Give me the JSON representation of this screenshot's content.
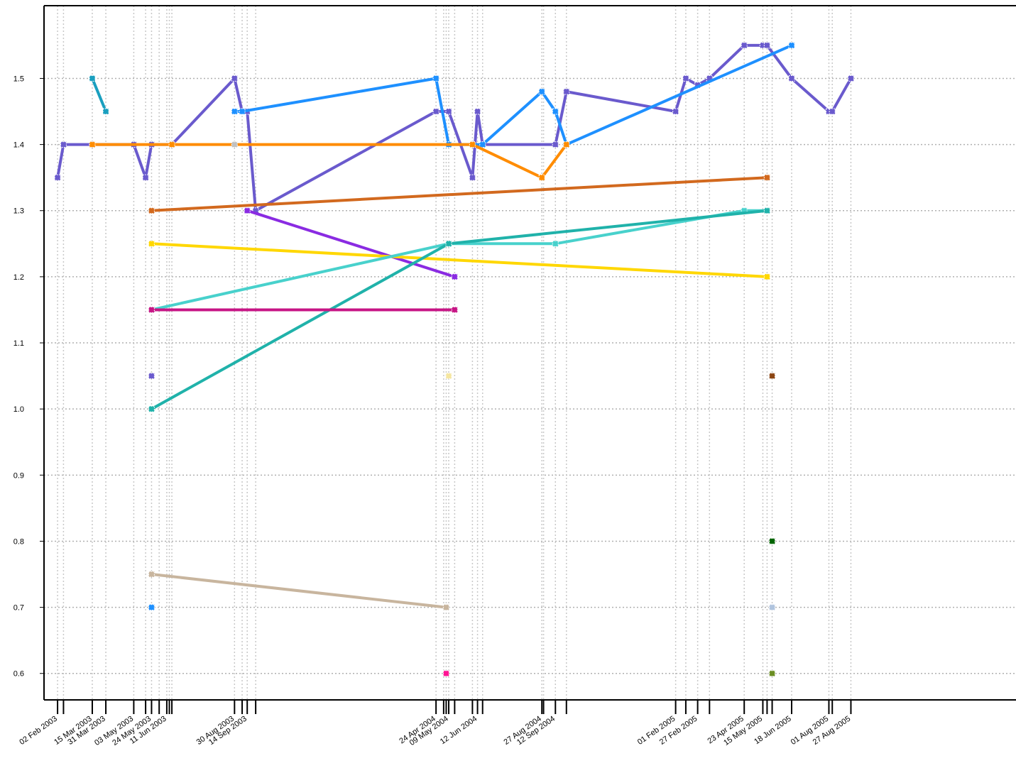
{
  "chart_data": {
    "type": "line",
    "title": "",
    "xlabel": "",
    "ylabel": "",
    "x_type": "date",
    "ylim": [
      0.56,
      1.61
    ],
    "xlim": [
      "2003-01-17",
      "2006-03-10"
    ],
    "grid": true,
    "legend": "none",
    "y_ticks": [
      0.6,
      0.7,
      0.8,
      0.9,
      1.0,
      1.1,
      1.2,
      1.3,
      1.4,
      1.5
    ],
    "y_tick_labels": [
      "0.6",
      "0.7",
      "0.8",
      "0.9",
      "1.0",
      "1.1",
      "1.2",
      "1.3",
      "1.4",
      "1.5"
    ],
    "x_ticks": [
      "2003-02-02",
      "2003-02-09",
      "2003-03-15",
      "2003-03-31",
      "2003-05-03",
      "2003-05-17",
      "2003-05-24",
      "2003-06-02",
      "2003-06-11",
      "2003-06-14",
      "2003-06-17",
      "2003-08-30",
      "2003-09-08",
      "2003-09-14",
      "2003-09-24",
      "2004-04-24",
      "2004-05-03",
      "2004-05-06",
      "2004-05-09",
      "2004-05-16",
      "2004-06-06",
      "2004-06-12",
      "2004-06-18",
      "2004-08-27",
      "2004-08-29",
      "2004-09-12",
      "2004-09-25",
      "2005-02-01",
      "2005-02-13",
      "2005-02-27",
      "2005-03-13",
      "2005-04-23",
      "2005-05-15",
      "2005-05-20",
      "2005-05-26",
      "2005-06-18",
      "2005-08-01",
      "2005-08-05",
      "2005-08-27"
    ],
    "x_labeled": [
      {
        "date": "2003-02-02",
        "label": "02 Feb 2003"
      },
      {
        "date": "2003-03-15",
        "label": "15 Mar 2003"
      },
      {
        "date": "2003-03-31",
        "label": "31 Mar 2003"
      },
      {
        "date": "2003-05-03",
        "label": "03 May 2003"
      },
      {
        "date": "2003-05-24",
        "label": "24 May 2003"
      },
      {
        "date": "2003-06-11",
        "label": "11 Jun 2003"
      },
      {
        "date": "2003-08-30",
        "label": "30 Aug 2003"
      },
      {
        "date": "2003-09-14",
        "label": "14 Sep 2003"
      },
      {
        "date": "2004-04-24",
        "label": "24 Apr 2004"
      },
      {
        "date": "2004-05-09",
        "label": "09 May 2004"
      },
      {
        "date": "2004-06-12",
        "label": "12 Jun 2004"
      },
      {
        "date": "2004-08-27",
        "label": "27 Aug 2004"
      },
      {
        "date": "2004-09-12",
        "label": "12 Sep 2004"
      },
      {
        "date": "2005-02-01",
        "label": "01 Feb 2005"
      },
      {
        "date": "2005-02-27",
        "label": "27 Feb 2005"
      },
      {
        "date": "2005-04-23",
        "label": "23 Apr 2005"
      },
      {
        "date": "2005-05-15",
        "label": "15 May 2005"
      },
      {
        "date": "2005-06-18",
        "label": "18 Jun 2005"
      },
      {
        "date": "2005-08-01",
        "label": "01 Aug 2005"
      },
      {
        "date": "2005-08-27",
        "label": "27 Aug 2005"
      }
    ],
    "series": [
      {
        "color": "#6A5ACD",
        "points": [
          [
            "2003-02-02",
            1.35
          ],
          [
            "2003-02-09",
            1.4
          ],
          [
            "2003-03-15",
            1.4
          ],
          [
            "2003-05-03",
            1.4
          ],
          [
            "2003-05-17",
            1.35
          ],
          [
            "2003-05-24",
            1.4
          ],
          [
            "2003-06-17",
            1.4
          ],
          [
            "2003-08-30",
            1.5
          ],
          [
            "2003-09-08",
            1.45
          ],
          [
            "2003-09-14",
            1.45
          ],
          [
            "2003-09-24",
            1.3
          ],
          [
            "2004-04-24",
            1.45
          ],
          [
            "2004-05-09",
            1.45
          ],
          [
            "2004-06-06",
            1.35
          ],
          [
            "2004-06-12",
            1.45
          ],
          [
            "2004-06-18",
            1.4
          ],
          [
            "2004-09-12",
            1.4
          ],
          [
            "2004-09-25",
            1.48
          ],
          [
            "2005-02-01",
            1.45
          ],
          [
            "2005-02-13",
            1.5
          ],
          [
            "2005-02-27",
            1.49
          ],
          [
            "2005-03-13",
            1.5
          ],
          [
            "2005-04-23",
            1.55
          ],
          [
            "2005-05-15",
            1.55
          ],
          [
            "2005-05-20",
            1.55
          ],
          [
            "2005-06-18",
            1.5
          ],
          [
            "2005-08-01",
            1.45
          ],
          [
            "2005-08-05",
            1.45
          ],
          [
            "2005-08-27",
            1.5
          ]
        ]
      },
      {
        "color": "#1E90FF",
        "points": [
          [
            "2003-08-30",
            1.45
          ],
          [
            "2003-09-08",
            1.45
          ],
          [
            "2004-04-24",
            1.5
          ],
          [
            "2004-05-09",
            1.4
          ],
          [
            "2004-06-18",
            1.4
          ],
          [
            "2004-08-27",
            1.48
          ],
          [
            "2004-09-12",
            1.45
          ],
          [
            "2004-09-25",
            1.4
          ],
          [
            "2005-06-18",
            1.55
          ]
        ]
      },
      {
        "color": "#1A9FBF",
        "points": [
          [
            "2003-03-15",
            1.5
          ],
          [
            "2003-03-31",
            1.45
          ]
        ]
      },
      {
        "color": "#FF8C00",
        "points": [
          [
            "2003-03-15",
            1.4
          ],
          [
            "2003-06-17",
            1.4
          ],
          [
            "2004-06-06",
            1.4
          ],
          [
            "2004-08-27",
            1.35
          ],
          [
            "2004-09-25",
            1.4
          ]
        ]
      },
      {
        "color": "#D2691E",
        "points": [
          [
            "2003-05-24",
            1.3
          ],
          [
            "2005-05-20",
            1.35
          ]
        ]
      },
      {
        "color": "#8A2BE2",
        "points": [
          [
            "2003-09-14",
            1.3
          ],
          [
            "2004-05-16",
            1.2
          ]
        ]
      },
      {
        "color": "#FFD700",
        "points": [
          [
            "2003-05-24",
            1.25
          ],
          [
            "2005-05-20",
            1.2
          ]
        ]
      },
      {
        "color": "#48D1CC",
        "points": [
          [
            "2003-05-24",
            1.15
          ],
          [
            "2004-05-09",
            1.25
          ],
          [
            "2004-09-12",
            1.25
          ],
          [
            "2005-04-23",
            1.3
          ],
          [
            "2005-05-20",
            1.3
          ]
        ]
      },
      {
        "color": "#20B2AA",
        "points": [
          [
            "2003-05-24",
            1.0
          ],
          [
            "2004-05-09",
            1.25
          ],
          [
            "2005-05-20",
            1.3
          ]
        ]
      },
      {
        "color": "#C71585",
        "points": [
          [
            "2003-05-24",
            1.15
          ],
          [
            "2004-05-16",
            1.15
          ]
        ]
      },
      {
        "color": "#C8B59E",
        "points": [
          [
            "2003-05-24",
            0.75
          ],
          [
            "2004-05-06",
            0.7
          ]
        ]
      }
    ],
    "single_points": [
      {
        "date": "2003-05-24",
        "y": 1.05,
        "color": "#6A5ACD"
      },
      {
        "date": "2003-05-24",
        "y": 0.7,
        "color": "#1E90FF"
      },
      {
        "date": "2003-08-30",
        "y": 1.4,
        "color": "#C0C0C0"
      },
      {
        "date": "2004-05-09",
        "y": 1.05,
        "color": "#F5E6A0"
      },
      {
        "date": "2004-05-06",
        "y": 0.6,
        "color": "#FF1493"
      },
      {
        "date": "2005-05-26",
        "y": 1.05,
        "color": "#8B4513"
      },
      {
        "date": "2005-05-26",
        "y": 0.8,
        "color": "#006400"
      },
      {
        "date": "2005-05-26",
        "y": 0.7,
        "color": "#B0C4DE"
      },
      {
        "date": "2005-05-26",
        "y": 0.6,
        "color": "#6B8E23"
      }
    ]
  }
}
